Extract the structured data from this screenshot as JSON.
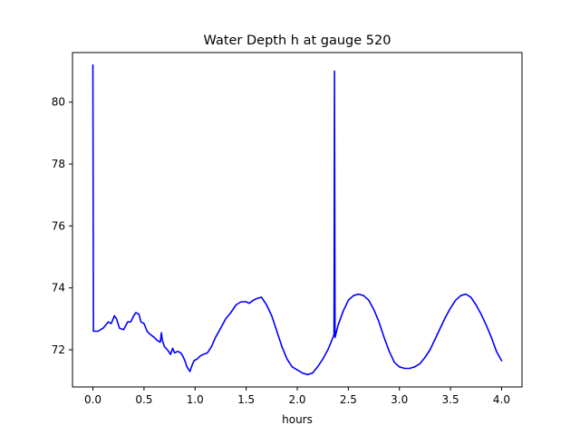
{
  "chart_data": {
    "type": "line",
    "title": "Water Depth h at gauge 520",
    "xlabel": "hours",
    "ylabel": "",
    "xlim": [
      -0.2,
      4.2
    ],
    "ylim": [
      70.8,
      81.6
    ],
    "xticks": [
      0.0,
      0.5,
      1.0,
      1.5,
      2.0,
      2.5,
      3.0,
      3.5,
      4.0
    ],
    "xtick_labels": [
      "0.0",
      "0.5",
      "1.0",
      "1.5",
      "2.0",
      "2.5",
      "3.0",
      "3.5",
      "4.0"
    ],
    "yticks": [
      72,
      74,
      76,
      78,
      80
    ],
    "ytick_labels": [
      "72",
      "74",
      "76",
      "78",
      "80"
    ],
    "grid": false,
    "series": [
      {
        "color": "#0000ff",
        "x": [
          0.0,
          0.005,
          0.01,
          0.05,
          0.1,
          0.15,
          0.18,
          0.21,
          0.23,
          0.26,
          0.3,
          0.34,
          0.37,
          0.4,
          0.42,
          0.45,
          0.47,
          0.5,
          0.53,
          0.56,
          0.6,
          0.63,
          0.66,
          0.67,
          0.68,
          0.7,
          0.73,
          0.76,
          0.78,
          0.8,
          0.83,
          0.86,
          0.88,
          0.9,
          0.92,
          0.95,
          0.97,
          0.99,
          1.02,
          1.05,
          1.08,
          1.12,
          1.16,
          1.2,
          1.25,
          1.3,
          1.35,
          1.4,
          1.45,
          1.5,
          1.53,
          1.57,
          1.6,
          1.65,
          1.7,
          1.75,
          1.8,
          1.85,
          1.9,
          1.95,
          2.0,
          2.05,
          2.1,
          2.15,
          2.2,
          2.25,
          2.3,
          2.35,
          2.36,
          2.365,
          2.37,
          2.4,
          2.45,
          2.5,
          2.55,
          2.6,
          2.65,
          2.7,
          2.75,
          2.8,
          2.85,
          2.9,
          2.95,
          3.0,
          3.05,
          3.1,
          3.15,
          3.2,
          3.25,
          3.3,
          3.35,
          3.4,
          3.45,
          3.5,
          3.55,
          3.6,
          3.65,
          3.7,
          3.75,
          3.8,
          3.85,
          3.9,
          3.95,
          4.0
        ],
        "y": [
          81.2,
          72.6,
          72.6,
          72.6,
          72.7,
          72.9,
          72.85,
          73.1,
          73.0,
          72.7,
          72.65,
          72.9,
          72.9,
          73.1,
          73.2,
          73.15,
          72.9,
          72.85,
          72.6,
          72.5,
          72.4,
          72.3,
          72.25,
          72.55,
          72.3,
          72.1,
          72.0,
          71.85,
          72.05,
          71.9,
          71.95,
          71.9,
          71.8,
          71.65,
          71.45,
          71.3,
          71.5,
          71.65,
          71.7,
          71.8,
          71.85,
          71.9,
          72.1,
          72.4,
          72.7,
          73.0,
          73.2,
          73.45,
          73.55,
          73.55,
          73.5,
          73.6,
          73.65,
          73.7,
          73.45,
          73.1,
          72.6,
          72.1,
          71.7,
          71.45,
          71.35,
          71.25,
          71.2,
          71.25,
          71.45,
          71.7,
          72.0,
          72.4,
          72.5,
          81.0,
          72.4,
          72.8,
          73.25,
          73.6,
          73.75,
          73.8,
          73.75,
          73.6,
          73.3,
          72.9,
          72.4,
          71.95,
          71.6,
          71.45,
          71.4,
          71.4,
          71.45,
          71.55,
          71.75,
          72.0,
          72.35,
          72.7,
          73.05,
          73.35,
          73.6,
          73.75,
          73.8,
          73.7,
          73.45,
          73.15,
          72.8,
          72.4,
          71.95,
          71.65
        ]
      }
    ]
  }
}
